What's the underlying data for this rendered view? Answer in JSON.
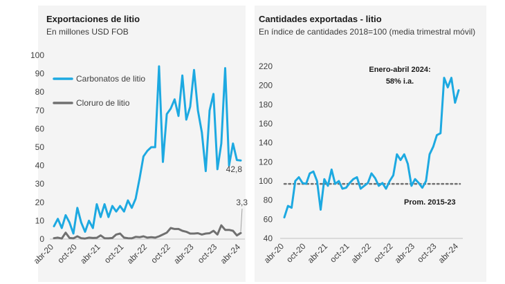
{
  "chart_data": [
    {
      "type": "line",
      "title": "Exportaciones de litio",
      "subtitle": "En millones USD FOB",
      "ylim": [
        0,
        100
      ],
      "yticks": [
        0,
        10,
        20,
        30,
        40,
        50,
        60,
        70,
        80,
        90,
        100
      ],
      "xticks": [
        "abr-20",
        "oct-20",
        "abr-21",
        "oct-21",
        "abr-22",
        "oct-22",
        "abr-23",
        "oct-23",
        "abr-24"
      ],
      "x_start": "abr-20",
      "x_end": "may-24",
      "series": [
        {
          "name": "Carbonatos de litio",
          "color": "#1da9e1",
          "values": [
            7,
            11,
            6,
            13,
            9,
            3,
            17,
            9,
            4,
            10,
            6,
            19,
            12,
            19,
            12,
            18,
            15,
            18,
            15,
            21,
            17,
            22,
            33,
            45,
            48,
            50,
            50,
            94,
            42,
            68,
            71,
            76,
            67,
            89,
            65,
            72,
            92,
            70,
            58,
            37,
            70,
            79,
            38,
            52,
            93,
            40,
            52,
            43,
            42.8
          ]
        },
        {
          "name": "Cloruro de litio",
          "color": "#707070",
          "values": [
            0.5,
            0.8,
            0.3,
            3.5,
            0.6,
            0.4,
            1.5,
            0.5,
            0.3,
            0.8,
            0.6,
            0.7,
            2,
            0.5,
            0.4,
            0.6,
            2.5,
            3,
            0.8,
            0.5,
            0.4,
            1.2,
            1,
            1.5,
            0.8,
            1,
            0.8,
            1.5,
            2.5,
            3.5,
            6,
            5.5,
            5.5,
            4.5,
            4,
            3,
            3,
            3.2,
            2.5,
            3,
            3.2,
            4.5,
            2.5,
            7.5,
            5,
            5,
            4.5,
            2,
            3.3
          ]
        }
      ],
      "last_labels": {
        "carbonatos": "42,8",
        "cloruro": "3,3"
      }
    },
    {
      "type": "line",
      "title": "Cantidades exportadas - litio",
      "subtitle": "En índice de cantidades 2018=100 (media trimestral móvil)",
      "ylim": [
        40,
        220
      ],
      "yticks": [
        40,
        60,
        80,
        100,
        120,
        140,
        160,
        180,
        200,
        220
      ],
      "xticks": [
        "abr-20",
        "oct-20",
        "abr-21",
        "oct-21",
        "abr-22",
        "oct-22",
        "abr-23",
        "oct-23",
        "abr-24"
      ],
      "x_start": "abr-20",
      "x_end": "may-24",
      "series": [
        {
          "name": "Índice de cantidades",
          "color": "#1da9e1",
          "values": [
            62,
            74,
            72,
            100,
            104,
            98,
            97,
            108,
            110,
            100,
            70,
            102,
            95,
            112,
            97,
            100,
            92,
            93,
            98,
            102,
            104,
            92,
            95,
            98,
            108,
            103,
            95,
            98,
            92,
            100,
            106,
            128,
            122,
            128,
            118,
            95,
            102,
            98,
            93,
            100,
            128,
            136,
            148,
            150,
            208,
            198,
            208,
            182,
            195
          ]
        }
      ],
      "reference_line": {
        "name": "Prom. 2015-23",
        "value": 97,
        "color": "#707070"
      },
      "annotation": {
        "line1": "Enero-abril 2024:",
        "line2": "58% i.a."
      }
    }
  ]
}
